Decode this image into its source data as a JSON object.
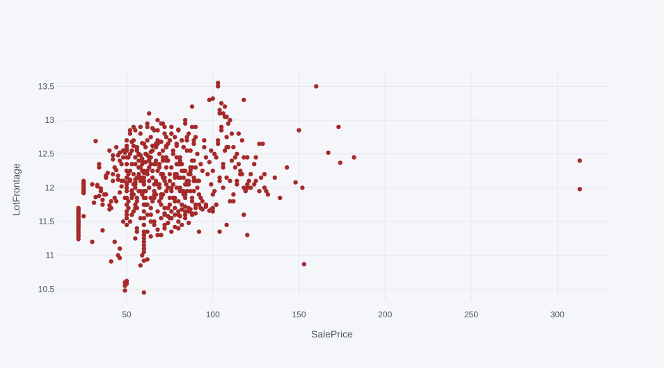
{
  "chart_data": {
    "type": "scatter",
    "xlabel": "SalePrice",
    "ylabel": "LotFrontage",
    "xlim": [
      10,
      330
    ],
    "ylim": [
      10.34,
      13.75
    ],
    "x_ticks": [
      50,
      100,
      150,
      200,
      250,
      300
    ],
    "y_ticks": [
      10.5,
      11,
      11.5,
      12,
      12.5,
      13,
      13.5
    ],
    "y_tick_labels": [
      "10.5",
      "11",
      "11.5",
      "12",
      "12.5",
      "13",
      "13.5"
    ],
    "grid": true,
    "marker_color": "#a52a2a",
    "background_color": "#f5f6fa",
    "grid_color": "#e3e6ee",
    "series": [
      {
        "x": [
          22,
          22,
          22,
          22,
          22,
          22,
          22,
          22,
          22,
          22,
          22,
          22,
          22,
          22,
          22,
          22,
          22,
          22,
          22,
          22,
          25,
          25,
          25,
          25,
          25,
          25,
          25,
          25,
          25,
          25,
          30,
          31,
          32,
          33,
          34,
          35,
          36,
          38,
          40,
          42,
          44,
          47,
          49,
          55,
          57,
          59,
          64,
          67,
          71,
          73,
          30,
          32,
          33,
          34,
          35,
          36,
          37,
          38,
          39,
          40,
          41,
          42,
          43,
          44,
          45,
          46,
          47,
          48,
          49,
          50,
          34,
          36,
          38,
          41,
          43,
          45,
          47,
          52,
          53,
          54,
          55,
          57,
          58,
          60,
          61,
          62,
          63,
          64,
          65,
          66,
          50,
          51,
          52,
          53,
          54,
          55,
          56,
          57,
          58,
          59,
          60,
          61,
          62,
          63,
          64,
          65,
          66,
          67,
          68,
          69,
          70,
          71,
          72,
          73,
          74,
          75,
          76,
          77,
          78,
          79,
          80,
          81,
          82,
          83,
          84,
          85,
          86,
          87,
          88,
          89,
          90,
          91,
          92,
          93,
          94,
          95,
          96,
          97,
          98,
          99,
          51,
          53,
          55,
          57,
          59,
          61,
          63,
          65,
          67,
          69,
          71,
          73,
          75,
          77,
          79,
          81,
          83,
          85,
          87,
          89,
          52,
          54,
          56,
          58,
          60,
          62,
          64,
          66,
          68,
          70,
          72,
          74,
          76,
          78,
          80,
          82,
          84,
          86,
          88,
          90,
          51,
          53,
          55,
          57,
          59,
          61,
          63,
          65,
          67,
          69,
          71,
          73,
          75,
          77,
          79,
          81,
          83,
          85,
          87,
          89,
          56,
          58,
          60,
          62,
          64,
          66,
          68,
          70,
          72,
          74,
          76,
          78,
          80,
          82,
          84,
          86,
          88,
          90,
          92,
          94,
          52,
          54,
          56,
          58,
          60,
          62,
          64,
          66,
          68,
          70,
          72,
          74,
          76,
          78,
          80,
          82,
          84,
          86,
          88,
          90,
          53,
          55,
          57,
          59,
          61,
          63,
          65,
          67,
          69,
          71,
          73,
          75,
          77,
          79,
          81,
          83,
          85,
          87,
          89,
          91,
          50,
          52,
          54,
          56,
          58,
          60,
          62,
          64,
          66,
          68,
          70,
          72,
          74,
          76,
          78,
          80,
          82,
          84,
          86,
          88,
          55,
          57,
          59,
          61,
          63,
          65,
          67,
          69,
          71,
          73,
          75,
          77,
          79,
          81,
          83,
          85,
          87,
          89,
          91,
          93,
          51,
          53,
          55,
          57,
          59,
          61,
          63,
          65,
          67,
          69,
          71,
          73,
          75,
          77,
          79,
          81,
          83,
          85,
          87,
          89,
          52,
          56,
          60,
          64,
          68,
          72,
          76,
          80,
          84,
          88,
          92,
          96,
          100,
          104,
          108,
          60,
          60,
          60,
          60,
          60,
          60,
          60,
          60,
          60,
          60,
          60,
          60,
          60,
          60,
          60,
          50,
          50,
          50,
          50,
          50,
          50,
          50,
          50,
          50,
          50,
          50,
          50,
          99,
          100,
          101,
          102,
          103,
          104,
          105,
          106,
          107,
          108,
          109,
          110,
          111,
          112,
          113,
          114,
          115,
          116,
          117,
          118,
          100,
          102,
          104,
          106,
          108,
          110,
          112,
          114,
          116,
          118,
          120,
          122,
          124,
          101,
          103,
          105,
          107,
          109,
          111,
          113,
          115,
          117,
          119,
          120,
          121,
          122,
          124,
          125,
          127,
          128,
          129,
          130,
          131,
          46,
          48,
          50,
          52,
          55,
          58,
          62,
          65,
          68,
          72,
          76,
          80,
          85,
          90,
          95,
          42,
          45,
          48,
          50,
          53,
          56,
          59,
          62,
          65,
          68,
          70,
          73,
          76,
          79,
          82,
          60,
          62,
          64,
          66,
          68,
          70,
          72,
          74,
          76,
          78,
          80,
          82,
          84,
          86,
          88,
          70,
          72,
          74,
          76,
          78,
          80,
          82,
          84,
          86,
          88,
          90,
          92,
          94,
          96,
          98,
          75,
          78,
          81,
          84,
          87,
          90,
          93,
          96,
          99,
          102,
          40,
          42,
          44,
          46,
          48,
          50,
          52,
          54,
          56,
          58,
          46,
          54,
          59,
          63,
          68,
          71,
          84,
          88,
          104,
          118,
          103,
          98,
          100,
          103,
          105,
          107,
          104,
          106,
          108,
          110,
          120,
          130,
          136,
          139,
          143,
          148,
          150,
          152,
          153,
          160,
          167,
          173,
          174,
          182,
          313,
          313,
          132,
          127,
          125,
          130,
          58,
          62,
          46,
          43,
          48,
          53,
          56,
          60,
          66,
          70,
          100,
          106,
          108,
          112,
          114,
          116,
          118,
          120,
          49,
          49,
          49,
          50,
          50,
          60,
          60,
          41,
          45,
          55
        ],
        "y": [
          11.24,
          11.28,
          11.31,
          11.34,
          11.37,
          11.4,
          11.42,
          11.44,
          11.46,
          11.48,
          11.5,
          11.52,
          11.55,
          11.58,
          11.61,
          11.63,
          11.66,
          11.68,
          11.7,
          11.62,
          11.58,
          11.92,
          11.98,
          12.0,
          12.03,
          12.06,
          12.08,
          12.1,
          11.96,
          11.94,
          11.2,
          11.78,
          12.69,
          12.02,
          12.35,
          11.99,
          11.37,
          12.18,
          11.68,
          12.1,
          11.8,
          12.1,
          12.52,
          12.12,
          12.49,
          12.43,
          12.53,
          12.6,
          12.45,
          12.62,
          12.05,
          11.86,
          12.04,
          11.88,
          11.95,
          11.82,
          11.9,
          12.15,
          12.22,
          11.74,
          11.7,
          12.2,
          12.3,
          12.26,
          12.18,
          11.93,
          12.02,
          12.1,
          11.85,
          12.08,
          12.3,
          11.75,
          11.9,
          11.8,
          11.85,
          12.12,
          12.35,
          12.12,
          11.96,
          12.05,
          12.08,
          12.4,
          12.15,
          12.22,
          12.38,
          12.48,
          12.3,
          12.45,
          12.55,
          12.35,
          11.6,
          11.8,
          12.1,
          11.95,
          12.2,
          11.7,
          11.85,
          12.3,
          12.1,
          11.9,
          12.05,
          11.75,
          12.25,
          12.0,
          11.85,
          12.15,
          11.95,
          12.35,
          12.05,
          11.8,
          12.2,
          11.9,
          12.1,
          12.4,
          12.0,
          11.75,
          12.3,
          12.05,
          11.85,
          12.45,
          12.15,
          11.95,
          12.35,
          12.25,
          12.05,
          12.55,
          12.2,
          11.95,
          12.4,
          12.15,
          12.3,
          12.5,
          12.1,
          12.35,
          12.25,
          12.6,
          12.45,
          12.2,
          12.38,
          12.55,
          11.7,
          11.85,
          12.0,
          12.15,
          12.25,
          11.95,
          12.4,
          11.8,
          12.1,
          12.3,
          11.9,
          12.05,
          12.2,
          11.85,
          12.35,
          12.0,
          12.15,
          11.95,
          12.3,
          12.1,
          11.5,
          11.65,
          11.8,
          11.95,
          12.1,
          11.75,
          11.6,
          11.9,
          12.05,
          11.85,
          11.7,
          12.0,
          11.95,
          12.15,
          11.8,
          12.25,
          11.9,
          12.05,
          11.85,
          12.1,
          12.2,
          12.35,
          12.45,
          12.3,
          12.15,
          12.5,
          12.4,
          12.25,
          12.6,
          12.35,
          12.55,
          12.45,
          12.7,
          12.5,
          12.65,
          12.4,
          12.6,
          12.75,
          12.55,
          12.7,
          11.4,
          11.55,
          11.45,
          11.6,
          11.7,
          11.5,
          11.65,
          11.75,
          11.6,
          11.7,
          11.55,
          11.8,
          11.65,
          11.75,
          11.85,
          11.7,
          11.8,
          11.75,
          11.9,
          11.8,
          12.85,
          12.7,
          12.6,
          12.8,
          12.65,
          12.9,
          12.75,
          12.85,
          12.7,
          12.95,
          12.8,
          12.65,
          12.9,
          12.75,
          12.85,
          12.7,
          12.95,
          12.8,
          12.9,
          12.75,
          11.9,
          12.05,
          12.2,
          12.35,
          11.95,
          12.1,
          12.25,
          12.4,
          12.0,
          12.15,
          12.3,
          11.85,
          12.05,
          12.2,
          12.35,
          11.95,
          12.1,
          12.25,
          12.4,
          12.0,
          12.0,
          12.25,
          11.9,
          12.15,
          12.3,
          11.95,
          12.2,
          12.35,
          12.05,
          12.25,
          11.9,
          12.15,
          12.4,
          12.0,
          12.2,
          12.35,
          11.95,
          12.25,
          12.1,
          12.3,
          11.75,
          11.95,
          12.1,
          11.85,
          12.0,
          12.15,
          11.9,
          12.05,
          12.2,
          11.95,
          12.1,
          11.85,
          12.0,
          12.15,
          11.9,
          12.05,
          12.2,
          11.95,
          12.1,
          11.85,
          12.45,
          12.55,
          12.35,
          12.5,
          12.4,
          12.6,
          12.45,
          12.55,
          12.65,
          12.5,
          12.4,
          12.6,
          12.7,
          12.55,
          12.65,
          12.45,
          12.6,
          12.7,
          12.55,
          12.65,
          12.1,
          11.35,
          11.3,
          11.5,
          11.3,
          11.45,
          11.55,
          11.4,
          11.6,
          11.6,
          11.35,
          11.75,
          11.65,
          11.35,
          11.45,
          11.05,
          11.1,
          11.15,
          11.2,
          11.25,
          11.35,
          11.45,
          11.55,
          11.65,
          11.75,
          11.85,
          11.95,
          12.05,
          12.15,
          12.25,
          11.45,
          11.55,
          11.65,
          11.75,
          11.85,
          11.95,
          12.05,
          12.15,
          12.25,
          12.35,
          12.45,
          12.55,
          12.05,
          12.25,
          11.95,
          12.45,
          12.65,
          12.15,
          12.85,
          12.35,
          12.55,
          12.75,
          12.95,
          12.1,
          12.4,
          12.6,
          12.3,
          12.5,
          12.8,
          12.2,
          12.7,
          12.45,
          11.7,
          11.75,
          12.1,
          12.3,
          12.6,
          11.8,
          11.9,
          12.05,
          12.2,
          11.6,
          12.0,
          12.2,
          12.35,
          12.5,
          12.7,
          12.9,
          13.05,
          12.6,
          12.8,
          12.45,
          12.35,
          12.2,
          11.95,
          12.45,
          12.1,
          12.0,
          12.05,
          12.45,
          11.95,
          12.15,
          12.65,
          12.0,
          11.95,
          12.4,
          12.55,
          12.7,
          12.8,
          12.85,
          12.9,
          12.95,
          12.88,
          12.85,
          12.9,
          12.8,
          12.86,
          12.75,
          12.9,
          12.7,
          12.42,
          12.48,
          12.55,
          12.62,
          12.68,
          12.58,
          12.66,
          12.7,
          12.62,
          12.65,
          12.68,
          12.75,
          12.8,
          12.62,
          12.7,
          11.3,
          11.35,
          11.28,
          11.45,
          11.38,
          11.3,
          11.4,
          11.48,
          11.35,
          11.42,
          11.5,
          11.45,
          11.55,
          11.48,
          11.6,
          11.55,
          11.62,
          11.58,
          11.65,
          11.7,
          11.6,
          11.68,
          11.72,
          11.65,
          11.62,
          11.7,
          11.75,
          11.68,
          11.72,
          11.66,
          11.55,
          11.6,
          11.58,
          11.65,
          11.68,
          11.62,
          11.7,
          11.72,
          11.68,
          11.75,
          12.55,
          12.48,
          12.6,
          12.52,
          12.45,
          12.58,
          12.5,
          12.62,
          12.55,
          12.48,
          11.1,
          12.9,
          11.0,
          13.1,
          13.0,
          12.95,
          13.0,
          13.2,
          13.1,
          13.3,
          13.5,
          13.3,
          13.32,
          13.55,
          13.25,
          13.2,
          13.15,
          13.1,
          13.05,
          13.0,
          11.3,
          12.2,
          12.15,
          11.85,
          12.3,
          12.08,
          12.85,
          12.0,
          10.87,
          13.5,
          12.52,
          12.9,
          12.37,
          12.45,
          12.4,
          11.98,
          11.9,
          12.65,
          12.1,
          12.0,
          10.85,
          10.94,
          10.96,
          11.2,
          11.5,
          11.6,
          11.7,
          11.75,
          11.85,
          11.9,
          11.9,
          12.0,
          12.15,
          11.8,
          12.1,
          12.25,
          12.0,
          12.05,
          10.48,
          10.55,
          10.6,
          10.62,
          10.58,
          10.45,
          10.92,
          10.91,
          11.0,
          11.25
        ]
      }
    ]
  }
}
